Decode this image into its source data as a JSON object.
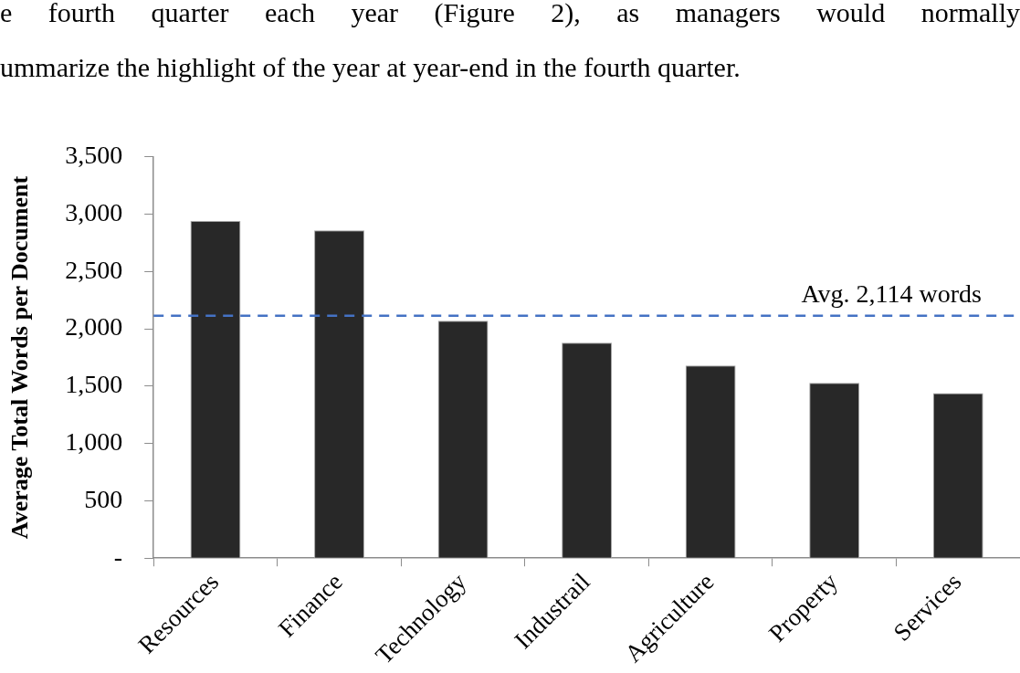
{
  "chart_data": {
    "type": "bar",
    "categories": [
      "Resources",
      "Finance",
      "Technology",
      "Industrail",
      "Agriculture",
      "Property",
      "Services"
    ],
    "values": [
      2940,
      2860,
      2070,
      1880,
      1680,
      1530,
      1440
    ],
    "color": "#282828",
    "ylabel": "Average Total Words per Document",
    "ylim": [
      0,
      3500
    ],
    "yticks": [
      {
        "value": 0,
        "label": "-"
      },
      500,
      {
        "value": 1000,
        "label": "1,000"
      },
      {
        "value": 1500,
        "label": "1,500"
      },
      {
        "value": 2000,
        "label": "2,000"
      },
      {
        "value": 2500,
        "label": "2,500"
      },
      {
        "value": 3000,
        "label": "3,000"
      },
      {
        "value": 3500,
        "label": "3,500"
      }
    ],
    "ref_lines": [
      {
        "axis": "y",
        "value": 2114,
        "label": "Avg. 2,114 words",
        "color": "#4472c4",
        "line_style": "dashed"
      }
    ],
    "annotations": [
      "e fourth quarter each year (Figure 2), as managers would normally",
      "ummarize the highlight of the year at year-end in the fourth quarter."
    ]
  }
}
